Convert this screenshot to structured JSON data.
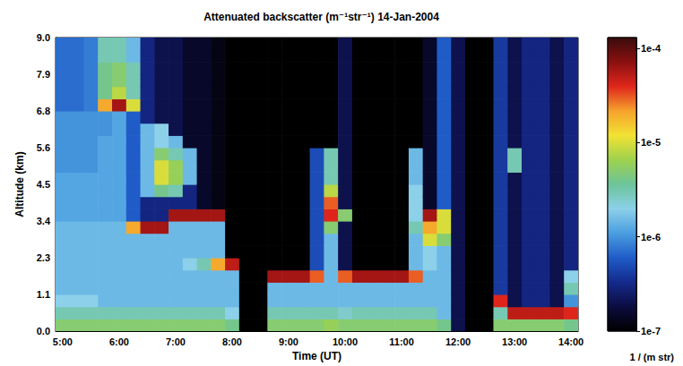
{
  "chart_data": {
    "type": "heatmap",
    "title": "Attenuated backscatter (m⁻¹str⁻¹) 14-Jan-2004",
    "x_label": "Time (UT)",
    "y_label": "Altitude (km)",
    "xlim": [
      4.875,
      14.125
    ],
    "ylim": [
      0,
      9
    ],
    "xticks": [
      {
        "value": 5,
        "label": "5:00"
      },
      {
        "value": 6,
        "label": "6:00"
      },
      {
        "value": 7,
        "label": "7:00"
      },
      {
        "value": 8,
        "label": "8:00"
      },
      {
        "value": 9,
        "label": "9:00"
      },
      {
        "value": 10,
        "label": "10:00"
      },
      {
        "value": 11,
        "label": "11:00"
      },
      {
        "value": 12,
        "label": "12:00"
      },
      {
        "value": 13,
        "label": "13:00"
      },
      {
        "value": 14,
        "label": "14:00"
      }
    ],
    "yticks": [
      {
        "value": 0,
        "label": "0.0"
      },
      {
        "value": 1.125,
        "label": "1.1"
      },
      {
        "value": 2.25,
        "label": "2.3"
      },
      {
        "value": 3.375,
        "label": "3.4"
      },
      {
        "value": 4.5,
        "label": "4.5"
      },
      {
        "value": 5.625,
        "label": "5.6"
      },
      {
        "value": 6.75,
        "label": "6.8"
      },
      {
        "value": 7.875,
        "label": "7.9"
      },
      {
        "value": 9,
        "label": "9.0"
      }
    ],
    "grid": false,
    "x": [
      5,
      5.25,
      5.5,
      5.75,
      6,
      6.25,
      6.5,
      6.75,
      7,
      7.25,
      7.5,
      7.75,
      8,
      8.25,
      8.5,
      8.75,
      9,
      9.25,
      9.5,
      9.75,
      10,
      10.25,
      10.5,
      10.75,
      11,
      11.25,
      11.5,
      11.75,
      12,
      12.25,
      12.5,
      12.75,
      13,
      13.25,
      13.5,
      13.75,
      14
    ],
    "y": [
      0.1875,
      0.5625,
      0.9375,
      1.3125,
      1.6875,
      2.0625,
      2.4375,
      2.8125,
      3.1875,
      3.5625,
      3.9375,
      4.3125,
      4.6875,
      5.0625,
      5.4375,
      5.8125,
      6.1875,
      6.5625,
      6.9375,
      7.3125,
      7.6875,
      8.0625,
      8.4375,
      8.8125
    ],
    "values": [
      [
        5e-06,
        3e-06,
        2e-06,
        1.5e-06,
        1.5e-06,
        1.5e-06,
        1.5e-06,
        1.5e-06,
        1.5e-06,
        1.2e-06,
        1.2e-06,
        1.2e-06,
        1.2e-06,
        1e-06,
        1e-06,
        1e-06,
        1e-06,
        1e-06,
        7e-07,
        7e-07,
        7e-07,
        7e-07,
        7e-07,
        7e-07
      ],
      [
        5e-06,
        3e-06,
        2e-06,
        1.5e-06,
        1.5e-06,
        1.5e-06,
        1.5e-06,
        1.5e-06,
        1.5e-06,
        1.2e-06,
        1.2e-06,
        1.2e-06,
        1.2e-06,
        1e-06,
        1e-06,
        1e-06,
        1e-06,
        1e-06,
        7e-07,
        7e-07,
        7e-07,
        7e-07,
        7e-07,
        7e-07
      ],
      [
        5e-06,
        3e-06,
        2e-06,
        1.5e-06,
        1.5e-06,
        1.5e-06,
        1.5e-06,
        1.5e-06,
        1.5e-06,
        1.2e-06,
        1.2e-06,
        1.2e-06,
        1.2e-06,
        1e-06,
        1e-06,
        1e-06,
        1e-06,
        1e-06,
        8e-07,
        8e-07,
        8e-07,
        8e-07,
        8e-07,
        8e-07
      ],
      [
        5e-06,
        3e-06,
        1.5e-06,
        1.5e-06,
        1.5e-06,
        1.5e-06,
        1.5e-06,
        1.5e-06,
        1.5e-06,
        1.2e-06,
        1.2e-06,
        1.2e-06,
        1.2e-06,
        1.2e-06,
        1.2e-06,
        1.2e-06,
        1e-06,
        1e-06,
        2e-05,
        4e-06,
        4e-06,
        4e-06,
        3e-06,
        3e-06
      ],
      [
        5e-06,
        3e-06,
        1.5e-06,
        1.5e-06,
        1.5e-06,
        1.5e-06,
        1.5e-06,
        1.5e-06,
        1.5e-06,
        1.2e-06,
        1.2e-06,
        1.2e-06,
        1.2e-06,
        1.2e-06,
        1.2e-06,
        1.2e-06,
        1.2e-06,
        1.2e-06,
        6e-05,
        8e-06,
        5e-06,
        5e-06,
        3e-06,
        3e-06
      ],
      [
        5e-06,
        3e-06,
        1.5e-06,
        1.5e-06,
        1.5e-06,
        1.5e-06,
        1.5e-06,
        1.5e-06,
        2e-05,
        6e-07,
        6e-07,
        6e-07,
        6e-07,
        6e-07,
        6e-07,
        6e-07,
        6e-07,
        6e-07,
        1e-05,
        3e-06,
        3e-06,
        3e-06,
        1.5e-06,
        1.5e-06
      ],
      [
        5e-06,
        3e-06,
        1.5e-06,
        1.5e-06,
        1.5e-06,
        1.5e-06,
        1.5e-06,
        1.5e-06,
        6e-05,
        3e-07,
        3e-07,
        1.5e-06,
        1.5e-06,
        1.5e-06,
        1.5e-06,
        1.5e-06,
        1.5e-06,
        3e-07,
        3e-07,
        3e-07,
        3e-07,
        3e-07,
        3e-07,
        3e-07
      ],
      [
        5e-06,
        3e-06,
        1.5e-06,
        1.5e-06,
        1.5e-06,
        1.5e-06,
        1.5e-06,
        1.5e-06,
        6e-05,
        3e-07,
        3e-07,
        4e-06,
        1e-05,
        1e-05,
        5e-06,
        2e-06,
        2e-06,
        2e-07,
        2e-07,
        2e-07,
        2e-07,
        2e-07,
        2e-07,
        2e-07
      ],
      [
        5e-06,
        3e-06,
        1.5e-06,
        1.5e-06,
        1.5e-06,
        1.5e-06,
        1.5e-06,
        1.5e-06,
        1.5e-06,
        6e-05,
        3e-07,
        3e-06,
        6e-06,
        6e-06,
        3e-06,
        1.5e-06,
        2e-07,
        2e-07,
        2e-07,
        2e-07,
        2e-07,
        2e-07,
        2e-07,
        2e-07
      ],
      [
        5e-06,
        3e-06,
        1.5e-06,
        1.5e-06,
        1.5e-06,
        2e-06,
        1.5e-06,
        1.5e-06,
        1.5e-06,
        6e-05,
        3e-07,
        3e-07,
        1.5e-06,
        1.5e-06,
        1.5e-06,
        1.5e-07,
        1.5e-07,
        1.5e-07,
        1.5e-07,
        1.5e-07,
        1.5e-07,
        1.5e-07,
        1.5e-07,
        1.5e-07
      ],
      [
        5e-06,
        3e-06,
        1.5e-06,
        1.5e-06,
        1.5e-06,
        3e-06,
        1.5e-06,
        1.5e-06,
        1.5e-06,
        6e-05,
        1.5e-07,
        1.5e-07,
        1.5e-07,
        1.5e-07,
        1.5e-07,
        1.5e-07,
        1.5e-07,
        1.5e-07,
        1.5e-07,
        1.5e-07,
        1.5e-07,
        1.5e-07,
        1.5e-07,
        1.5e-07
      ],
      [
        5e-06,
        3e-06,
        1.5e-06,
        1.5e-06,
        1.5e-06,
        2e-05,
        1.5e-06,
        1.5e-06,
        1.5e-06,
        6e-05,
        1.2e-07,
        1.2e-07,
        1.2e-07,
        1.2e-07,
        1.2e-07,
        1.2e-07,
        1.2e-07,
        1.2e-07,
        1.2e-07,
        1.2e-07,
        1.2e-07,
        1.2e-07,
        1.2e-07,
        1.2e-07
      ],
      [
        4e-06,
        2e-06,
        1.5e-06,
        1.5e-06,
        1.5e-06,
        5e-05,
        1e-07,
        1e-07,
        1e-07,
        1e-07,
        1e-07,
        1e-07,
        1e-07,
        1e-07,
        1e-07,
        1e-07,
        1e-07,
        1e-07,
        1e-07,
        1e-07,
        1e-07,
        1e-07,
        1e-07,
        1e-07
      ],
      [
        1e-07,
        1e-07,
        1e-07,
        1e-07,
        1e-07,
        1e-07,
        1e-07,
        1e-07,
        1e-07,
        1e-07,
        1e-07,
        1e-07,
        1e-07,
        1e-07,
        1e-07,
        1e-07,
        1e-07,
        1e-07,
        1e-07,
        1e-07,
        1e-07,
        1e-07,
        1e-07,
        1e-07
      ],
      [
        1e-07,
        1e-07,
        1e-07,
        1e-07,
        1e-07,
        1e-07,
        1e-07,
        1e-07,
        1e-07,
        1e-07,
        1e-07,
        1e-07,
        1e-07,
        1e-07,
        1e-07,
        1e-07,
        1e-07,
        1e-07,
        1e-07,
        1e-07,
        1e-07,
        1e-07,
        1e-07,
        1e-07
      ],
      [
        5e-06,
        3e-06,
        1.5e-06,
        1.5e-06,
        6e-05,
        1e-07,
        1e-07,
        1e-07,
        1e-07,
        1e-07,
        1e-07,
        1e-07,
        1e-07,
        1e-07,
        1e-07,
        1e-07,
        1e-07,
        1e-07,
        1e-07,
        1e-07,
        1e-07,
        1e-07,
        1e-07,
        1e-07
      ],
      [
        5e-06,
        3e-06,
        1.5e-06,
        1.5e-06,
        6e-05,
        1e-07,
        1e-07,
        1e-07,
        1e-07,
        1e-07,
        1e-07,
        1e-07,
        1e-07,
        1e-07,
        1e-07,
        1e-07,
        1e-07,
        1e-07,
        1e-07,
        1e-07,
        1e-07,
        1e-07,
        1e-07,
        1e-07
      ],
      [
        5e-06,
        3e-06,
        1.5e-06,
        1.5e-06,
        6e-05,
        1e-07,
        1e-07,
        1e-07,
        1e-07,
        1e-07,
        1e-07,
        1e-07,
        1e-07,
        1e-07,
        1e-07,
        1e-07,
        1e-07,
        1e-07,
        1e-07,
        1e-07,
        1e-07,
        1e-07,
        1e-07,
        1e-07
      ],
      [
        5e-06,
        3e-06,
        1.5e-06,
        1.5e-06,
        3e-05,
        5e-07,
        5e-07,
        5e-07,
        5e-07,
        5e-07,
        5e-07,
        5e-07,
        5e-07,
        5e-07,
        5e-07,
        1e-07,
        1e-07,
        1e-07,
        1e-07,
        1e-07,
        1e-07,
        1e-07,
        1e-07,
        1e-07
      ],
      [
        6e-06,
        3e-06,
        1.5e-06,
        1.5e-06,
        1.5e-06,
        1.5e-06,
        1.5e-06,
        1.5e-06,
        5e-06,
        4e-05,
        3e-05,
        8e-06,
        3e-06,
        3e-06,
        3e-06,
        1e-07,
        1e-07,
        1e-07,
        1e-07,
        1e-07,
        1e-07,
        1e-07,
        1e-07,
        1e-07
      ],
      [
        5e-06,
        2.5e-06,
        1.5e-06,
        1.5e-06,
        3e-05,
        2e-07,
        2e-07,
        2e-07,
        2e-07,
        5e-06,
        2e-07,
        2e-07,
        2e-07,
        2e-07,
        2e-07,
        2e-07,
        2e-07,
        2e-07,
        2e-07,
        2e-07,
        2e-07,
        2e-07,
        2e-07,
        2e-07
      ],
      [
        5e-06,
        3e-06,
        1.5e-06,
        1.5e-06,
        6e-05,
        1e-07,
        1e-07,
        1e-07,
        1e-07,
        1e-07,
        1e-07,
        1e-07,
        1e-07,
        1e-07,
        1e-07,
        1e-07,
        1e-07,
        1e-07,
        1e-07,
        1e-07,
        1e-07,
        1e-07,
        1e-07,
        1e-07
      ],
      [
        5e-06,
        3e-06,
        1.5e-06,
        1.5e-06,
        6e-05,
        1e-07,
        1e-07,
        1e-07,
        1e-07,
        1e-07,
        1e-07,
        1e-07,
        1e-07,
        1e-07,
        1e-07,
        1e-07,
        1e-07,
        1e-07,
        1e-07,
        1e-07,
        1e-07,
        1e-07,
        1e-07,
        1e-07
      ],
      [
        5e-06,
        3e-06,
        1.5e-06,
        1.5e-06,
        6e-05,
        1e-07,
        1e-07,
        1e-07,
        1e-07,
        1e-07,
        1e-07,
        1e-07,
        1e-07,
        1e-07,
        1e-07,
        1e-07,
        1e-07,
        1e-07,
        1e-07,
        1e-07,
        1e-07,
        1e-07,
        1e-07,
        1e-07
      ],
      [
        5e-06,
        3e-06,
        1.5e-06,
        1.5e-06,
        6e-05,
        1e-07,
        1e-07,
        1e-07,
        1e-07,
        1e-07,
        1e-07,
        1e-07,
        1e-07,
        1e-07,
        1e-07,
        1e-07,
        1e-07,
        1e-07,
        1e-07,
        1e-07,
        1e-07,
        1e-07,
        1e-07,
        1e-07
      ],
      [
        5e-06,
        3e-06,
        1.5e-06,
        1.5e-06,
        3e-05,
        1.5e-06,
        1.5e-06,
        1.5e-06,
        3e-06,
        2e-06,
        2e-06,
        2e-06,
        1.5e-06,
        1.5e-06,
        1.5e-06,
        1e-07,
        1e-07,
        1e-07,
        1e-07,
        1e-07,
        1e-07,
        1e-07,
        1e-07,
        1e-07
      ],
      [
        5e-06,
        3e-06,
        1.5e-06,
        1.5e-06,
        1.5e-06,
        2e-06,
        2e-06,
        1e-05,
        2e-05,
        6e-05,
        1.5e-07,
        1.5e-07,
        1.5e-07,
        1.5e-07,
        1.5e-07,
        1.5e-07,
        1.5e-07,
        1.5e-07,
        1.5e-07,
        1.5e-07,
        1.5e-07,
        1.5e-07,
        1.5e-07,
        1.5e-07
      ],
      [
        4e-06,
        1.5e-06,
        1.5e-06,
        1.5e-06,
        1.5e-06,
        1.5e-06,
        1.5e-06,
        5e-06,
        1e-05,
        1e-05,
        6e-07,
        6e-07,
        6e-07,
        6e-07,
        6e-07,
        6e-07,
        6e-07,
        6e-07,
        6e-07,
        6e-07,
        6e-07,
        6e-07,
        6e-07,
        6e-07
      ],
      [
        2e-07,
        2e-07,
        2e-07,
        2e-07,
        2e-07,
        2e-07,
        2e-07,
        2e-07,
        2e-07,
        2e-07,
        2e-07,
        2e-07,
        2e-07,
        2e-07,
        2e-07,
        2e-07,
        2e-07,
        2e-07,
        2e-07,
        2e-07,
        2e-07,
        2e-07,
        2e-07,
        2e-07
      ],
      [
        1e-07,
        1e-07,
        1e-07,
        1e-07,
        1e-07,
        1e-07,
        1e-07,
        1e-07,
        1e-07,
        1e-07,
        1e-07,
        1e-07,
        1e-07,
        1e-07,
        1e-07,
        1e-07,
        1e-07,
        1e-07,
        1e-07,
        1e-07,
        1e-07,
        1e-07,
        1e-07,
        1e-07
      ],
      [
        1e-07,
        1e-07,
        1e-07,
        1e-07,
        1e-07,
        1e-07,
        1e-07,
        1e-07,
        1e-07,
        1e-07,
        1e-07,
        1e-07,
        1e-07,
        1e-07,
        1e-07,
        1e-07,
        1e-07,
        1e-07,
        1e-07,
        1e-07,
        1e-07,
        1e-07,
        1e-07,
        1e-07
      ],
      [
        5e-06,
        3e-06,
        4e-05,
        4e-07,
        4e-07,
        4e-07,
        4e-07,
        4e-07,
        4e-07,
        4e-07,
        4e-07,
        4e-07,
        4e-07,
        4e-07,
        4e-07,
        4e-07,
        4e-07,
        4e-07,
        4e-07,
        4e-07,
        4e-07,
        4e-07,
        4e-07,
        4e-07
      ],
      [
        5e-06,
        5e-05,
        2e-07,
        2e-07,
        2e-07,
        2e-07,
        2e-07,
        2e-07,
        2e-07,
        2e-07,
        2e-07,
        2e-07,
        2e-07,
        3e-06,
        3e-06,
        2e-07,
        2e-07,
        2e-07,
        2e-07,
        2e-07,
        2e-07,
        2e-07,
        2e-07,
        2e-07
      ],
      [
        5e-06,
        5e-05,
        3e-07,
        3e-07,
        3e-07,
        3e-07,
        3e-07,
        3e-07,
        3e-07,
        3e-07,
        3e-07,
        3e-07,
        3e-07,
        3e-07,
        3e-07,
        3e-07,
        3e-07,
        3e-07,
        3e-07,
        3e-07,
        3e-07,
        3e-07,
        3e-07,
        3e-07
      ],
      [
        5e-06,
        5e-05,
        3e-07,
        3e-07,
        3e-07,
        3e-07,
        3e-07,
        3e-07,
        3e-07,
        3e-07,
        3e-07,
        3e-07,
        3e-07,
        3e-07,
        3e-07,
        3e-07,
        3e-07,
        3e-07,
        3e-07,
        3e-07,
        3e-07,
        3e-07,
        3e-07,
        3e-07
      ],
      [
        5e-06,
        5e-05,
        2e-07,
        2e-07,
        2e-07,
        2e-07,
        2e-07,
        2e-07,
        2e-07,
        2e-07,
        2e-07,
        2e-07,
        2e-07,
        2e-07,
        2e-07,
        2e-07,
        2e-07,
        2e-07,
        2e-07,
        2e-07,
        2e-07,
        2e-07,
        2e-07,
        2e-07
      ],
      [
        4e-06,
        4e-05,
        1e-06,
        3e-06,
        2e-06,
        3e-07,
        3e-07,
        3e-07,
        3e-07,
        3e-07,
        3e-07,
        3e-07,
        3e-07,
        3e-07,
        3e-07,
        3e-07,
        3e-07,
        3e-07,
        3e-07,
        3e-07,
        3e-07,
        3e-07,
        3e-07,
        3e-07
      ]
    ],
    "colorbar": {
      "label": "1 / (m str)",
      "log": true,
      "range": [
        1e-07,
        0.00013
      ],
      "ticks": [
        {
          "value": 1e-07,
          "label": "1e-7"
        },
        {
          "value": 1e-06,
          "label": "1e-6"
        },
        {
          "value": 1e-05,
          "label": "1e-5"
        },
        {
          "value": 0.0001,
          "label": "1e-4"
        }
      ]
    }
  }
}
